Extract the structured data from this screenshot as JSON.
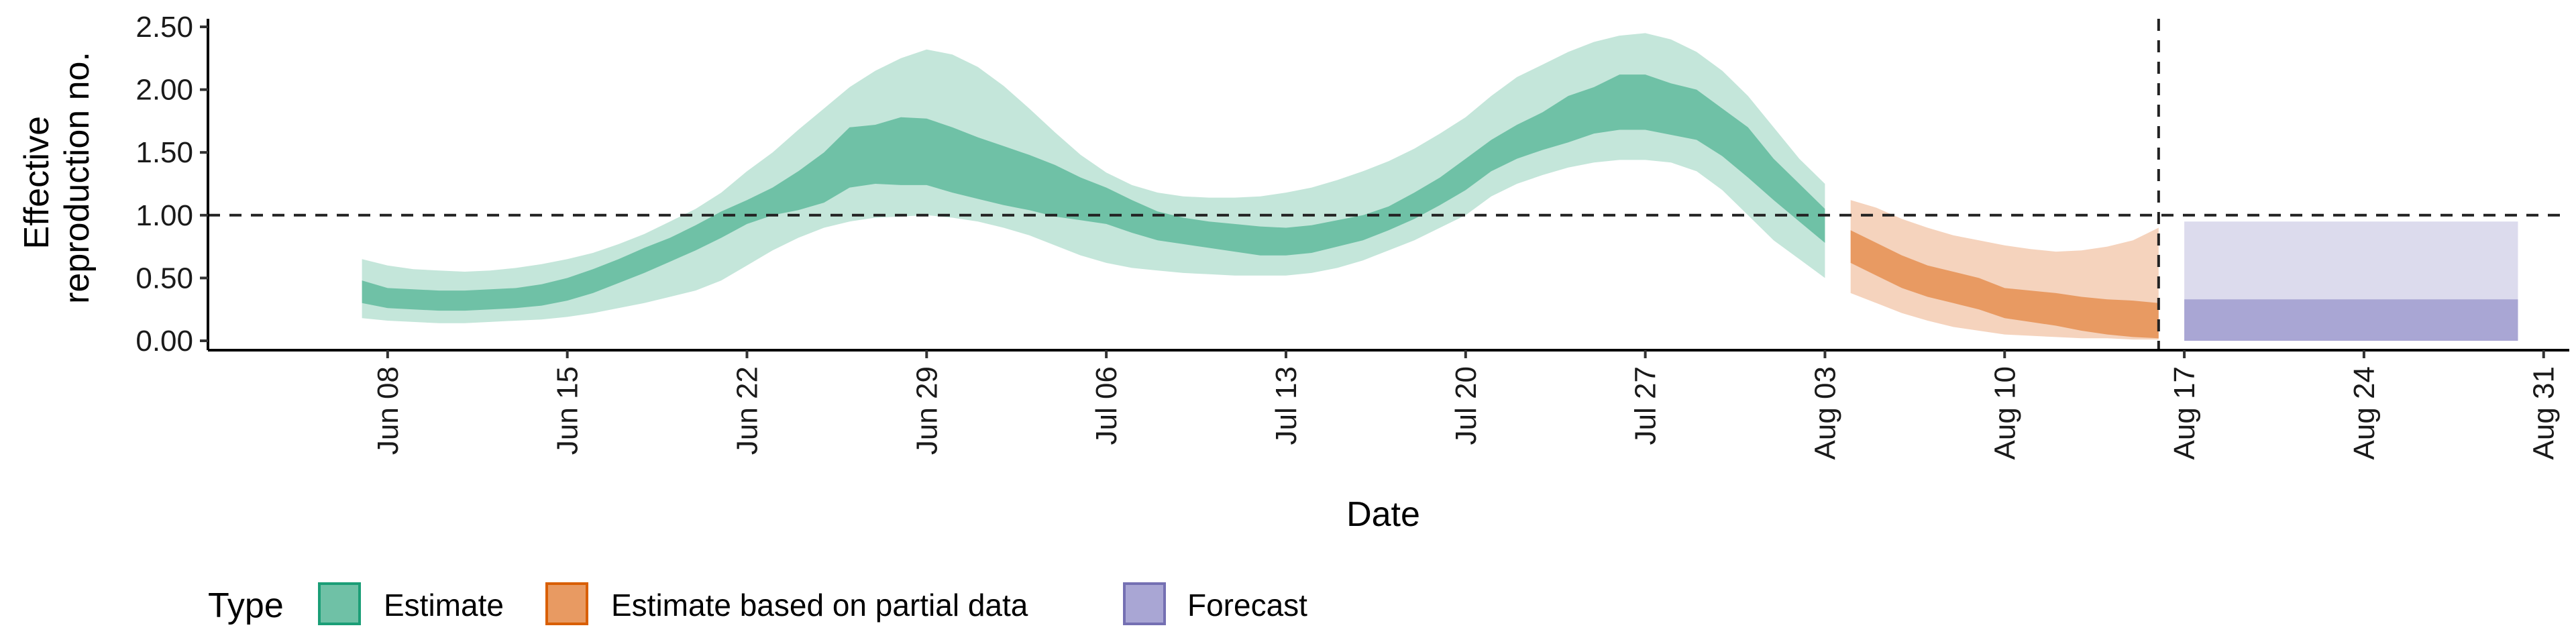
{
  "chart_data": {
    "type": "area",
    "xlabel": "Date",
    "ylabel": "Effective reproduction no.",
    "ylabel_lines": [
      "Effective",
      "reproduction no."
    ],
    "x_range": [
      "2020-06-01",
      "2020-09-01"
    ],
    "ylim": [
      0,
      2.55
    ],
    "x_ticks": [
      {
        "date": "2020-06-08",
        "label": "Jun 08"
      },
      {
        "date": "2020-06-15",
        "label": "Jun 15"
      },
      {
        "date": "2020-06-22",
        "label": "Jun 22"
      },
      {
        "date": "2020-06-29",
        "label": "Jun 29"
      },
      {
        "date": "2020-07-06",
        "label": "Jul 06"
      },
      {
        "date": "2020-07-13",
        "label": "Jul 13"
      },
      {
        "date": "2020-07-20",
        "label": "Jul 20"
      },
      {
        "date": "2020-07-27",
        "label": "Jul 27"
      },
      {
        "date": "2020-08-03",
        "label": "Aug 03"
      },
      {
        "date": "2020-08-10",
        "label": "Aug 10"
      },
      {
        "date": "2020-08-17",
        "label": "Aug 17"
      },
      {
        "date": "2020-08-24",
        "label": "Aug 24"
      },
      {
        "date": "2020-08-31",
        "label": "Aug 31"
      }
    ],
    "y_ticks": [
      {
        "value": 0.0,
        "label": "0.00"
      },
      {
        "value": 0.5,
        "label": "0.50"
      },
      {
        "value": 1.0,
        "label": "1.00"
      },
      {
        "value": 1.5,
        "label": "1.50"
      },
      {
        "value": 2.0,
        "label": "2.00"
      },
      {
        "value": 2.5,
        "label": "2.50"
      }
    ],
    "reference_lines": {
      "horizontal_y": 1.0,
      "vertical_date": "2020-08-16"
    },
    "grid": false,
    "legend": {
      "title": "Type",
      "position": "bottom",
      "items": [
        {
          "label": "Estimate",
          "fill": "#6fc1a6",
          "border": "#1b9e77"
        },
        {
          "label": "Estimate based on partial data",
          "fill": "#e89a62",
          "border": "#d95f02"
        },
        {
          "label": "Forecast",
          "fill": "#a9a6d4",
          "border": "#7570b3"
        }
      ]
    },
    "series": [
      {
        "name": "Estimate",
        "outer_color": "#c4e6da",
        "inner_color": "#6fc1a6",
        "x": [
          "2020-06-07",
          "2020-06-08",
          "2020-06-09",
          "2020-06-10",
          "2020-06-11",
          "2020-06-12",
          "2020-06-13",
          "2020-06-14",
          "2020-06-15",
          "2020-06-16",
          "2020-06-17",
          "2020-06-18",
          "2020-06-19",
          "2020-06-20",
          "2020-06-21",
          "2020-06-22",
          "2020-06-23",
          "2020-06-24",
          "2020-06-25",
          "2020-06-26",
          "2020-06-27",
          "2020-06-28",
          "2020-06-29",
          "2020-06-30",
          "2020-07-01",
          "2020-07-02",
          "2020-07-03",
          "2020-07-04",
          "2020-07-05",
          "2020-07-06",
          "2020-07-07",
          "2020-07-08",
          "2020-07-09",
          "2020-07-10",
          "2020-07-11",
          "2020-07-12",
          "2020-07-13",
          "2020-07-14",
          "2020-07-15",
          "2020-07-16",
          "2020-07-17",
          "2020-07-18",
          "2020-07-19",
          "2020-07-20",
          "2020-07-21",
          "2020-07-22",
          "2020-07-23",
          "2020-07-24",
          "2020-07-25",
          "2020-07-26",
          "2020-07-27",
          "2020-07-28",
          "2020-07-29",
          "2020-07-30",
          "2020-07-31",
          "2020-08-01",
          "2020-08-02",
          "2020-08-03"
        ],
        "lower_90": [
          0.18,
          0.16,
          0.15,
          0.14,
          0.14,
          0.15,
          0.16,
          0.17,
          0.19,
          0.22,
          0.26,
          0.3,
          0.35,
          0.4,
          0.48,
          0.6,
          0.72,
          0.82,
          0.9,
          0.95,
          0.98,
          0.99,
          1.0,
          0.98,
          0.95,
          0.9,
          0.84,
          0.76,
          0.68,
          0.62,
          0.58,
          0.56,
          0.54,
          0.53,
          0.52,
          0.52,
          0.52,
          0.54,
          0.58,
          0.64,
          0.72,
          0.8,
          0.9,
          1.0,
          1.15,
          1.25,
          1.32,
          1.38,
          1.42,
          1.44,
          1.44,
          1.42,
          1.35,
          1.2,
          1.0,
          0.8,
          0.65,
          0.5
        ],
        "upper_90": [
          0.65,
          0.6,
          0.57,
          0.56,
          0.55,
          0.56,
          0.58,
          0.61,
          0.65,
          0.7,
          0.77,
          0.85,
          0.95,
          1.05,
          1.18,
          1.35,
          1.5,
          1.68,
          1.85,
          2.02,
          2.15,
          2.25,
          2.32,
          2.28,
          2.18,
          2.03,
          1.85,
          1.66,
          1.48,
          1.34,
          1.24,
          1.18,
          1.15,
          1.14,
          1.14,
          1.15,
          1.18,
          1.22,
          1.28,
          1.35,
          1.43,
          1.53,
          1.65,
          1.78,
          1.95,
          2.1,
          2.2,
          2.3,
          2.38,
          2.43,
          2.45,
          2.4,
          2.3,
          2.15,
          1.95,
          1.7,
          1.45,
          1.25
        ],
        "lower_50": [
          0.3,
          0.26,
          0.25,
          0.24,
          0.24,
          0.25,
          0.26,
          0.28,
          0.32,
          0.38,
          0.46,
          0.54,
          0.63,
          0.72,
          0.82,
          0.93,
          1.0,
          1.04,
          1.1,
          1.22,
          1.25,
          1.24,
          1.24,
          1.18,
          1.13,
          1.08,
          1.04,
          0.99,
          0.96,
          0.93,
          0.86,
          0.8,
          0.77,
          0.74,
          0.71,
          0.68,
          0.68,
          0.7,
          0.75,
          0.8,
          0.88,
          0.97,
          1.08,
          1.2,
          1.35,
          1.45,
          1.52,
          1.58,
          1.65,
          1.68,
          1.68,
          1.64,
          1.6,
          1.47,
          1.3,
          1.12,
          0.95,
          0.78
        ],
        "upper_50": [
          0.48,
          0.42,
          0.41,
          0.4,
          0.4,
          0.41,
          0.42,
          0.45,
          0.5,
          0.57,
          0.65,
          0.74,
          0.82,
          0.92,
          1.03,
          1.12,
          1.22,
          1.35,
          1.5,
          1.7,
          1.72,
          1.78,
          1.77,
          1.7,
          1.62,
          1.55,
          1.48,
          1.4,
          1.3,
          1.22,
          1.12,
          1.03,
          0.98,
          0.95,
          0.93,
          0.91,
          0.9,
          0.92,
          0.96,
          1.0,
          1.07,
          1.18,
          1.3,
          1.45,
          1.6,
          1.72,
          1.82,
          1.95,
          2.02,
          2.12,
          2.12,
          2.05,
          2.0,
          1.85,
          1.7,
          1.45,
          1.25,
          1.05
        ]
      },
      {
        "name": "Estimate based on partial data",
        "outer_color": "#f5d3bd",
        "inner_color": "#e89a62",
        "x": [
          "2020-08-04",
          "2020-08-05",
          "2020-08-06",
          "2020-08-07",
          "2020-08-08",
          "2020-08-09",
          "2020-08-10",
          "2020-08-11",
          "2020-08-12",
          "2020-08-13",
          "2020-08-14",
          "2020-08-15",
          "2020-08-16"
        ],
        "lower_90": [
          0.38,
          0.3,
          0.22,
          0.16,
          0.11,
          0.08,
          0.05,
          0.04,
          0.03,
          0.02,
          0.02,
          0.01,
          0.01
        ],
        "upper_90": [
          1.12,
          1.06,
          0.97,
          0.9,
          0.84,
          0.8,
          0.76,
          0.73,
          0.71,
          0.72,
          0.75,
          0.8,
          0.9
        ],
        "lower_50": [
          0.62,
          0.52,
          0.42,
          0.35,
          0.3,
          0.25,
          0.18,
          0.15,
          0.12,
          0.08,
          0.05,
          0.03,
          0.02
        ],
        "upper_50": [
          0.88,
          0.78,
          0.68,
          0.6,
          0.55,
          0.5,
          0.42,
          0.4,
          0.38,
          0.35,
          0.33,
          0.32,
          0.3
        ]
      },
      {
        "name": "Forecast",
        "outer_color": "#dcdbed",
        "inner_color": "#a9a6d4",
        "x": [
          "2020-08-17",
          "2020-08-30"
        ],
        "lower_90": [
          0.0,
          0.0
        ],
        "upper_90": [
          0.95,
          0.95
        ],
        "lower_50": [
          0.0,
          0.0
        ],
        "upper_50": [
          0.33,
          0.33
        ]
      }
    ]
  }
}
